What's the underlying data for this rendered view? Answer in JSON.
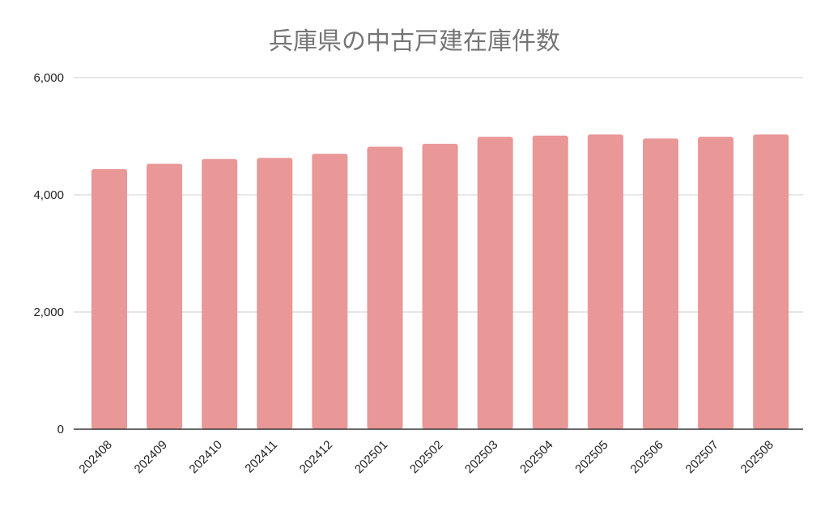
{
  "chart_data": {
    "type": "bar",
    "title": "兵庫県の中古戸建在庫件数",
    "categories": [
      "202408",
      "202409",
      "202410",
      "202411",
      "202412",
      "202501",
      "202502",
      "202503",
      "202504",
      "202505",
      "202506",
      "202507",
      "202508"
    ],
    "values": [
      4440,
      4530,
      4610,
      4630,
      4700,
      4820,
      4870,
      4990,
      5010,
      5030,
      4960,
      4990,
      5030
    ],
    "ylim": [
      0,
      6000
    ],
    "yticks": [
      0,
      2000,
      4000,
      6000
    ],
    "ytick_labels": [
      "0",
      "2,000",
      "4,000",
      "6,000"
    ],
    "grid": true,
    "bar_color": "#e99797",
    "grid_color": "#cccccc",
    "axis_color": "#333333"
  }
}
